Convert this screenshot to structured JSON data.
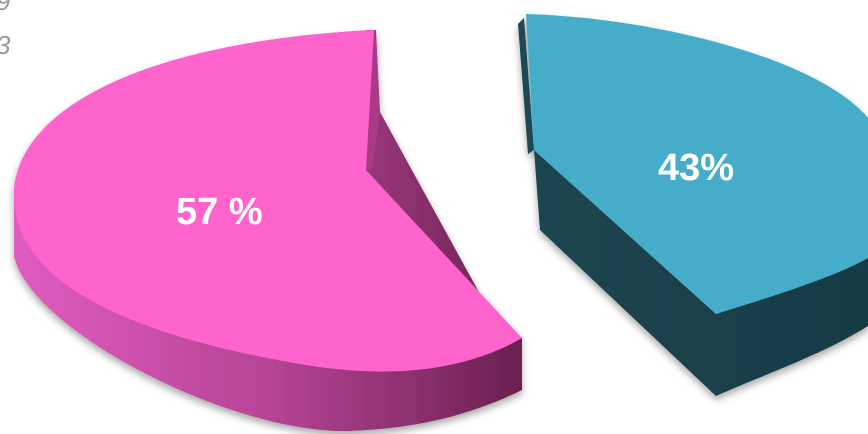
{
  "chart_data": {
    "type": "pie",
    "title": "",
    "series": [
      {
        "values": [
          57,
          43
        ],
        "colors": [
          "#ff63cc",
          "#45adc9"
        ],
        "side_colors": [
          "#b43c93",
          "#1e4a55"
        ],
        "labels": [
          "57 %",
          "43%"
        ]
      }
    ],
    "exploded": true,
    "three_d": true,
    "legend": "none"
  },
  "fragments": [
    "9",
    "3"
  ]
}
